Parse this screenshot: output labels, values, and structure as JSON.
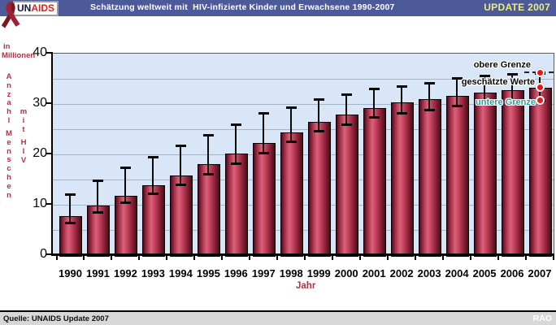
{
  "header": {
    "logo_un": "UN",
    "logo_aids": "AIDS",
    "title": "Schätzung weltweit mit  HIV-infizierte Kinder und Erwachsene 1990-2007",
    "update_label": "UPDATE 2007",
    "bar_color": "#4d5a99",
    "update_color": "#eded7c"
  },
  "axis": {
    "unit_line1": "in",
    "unit_line2": "Millionen",
    "y_word_1": "Anzahl",
    "y_word_2": "Menschen",
    "y_word_3": "mit",
    "y_word_4": "HIV",
    "x_title": "Jahr",
    "y_ticks": [
      0,
      10,
      20,
      30,
      40
    ]
  },
  "legend": {
    "upper_label": "obere Grenze",
    "estimate_label": "geschätzte Werte",
    "lower_label": "untere Grenze",
    "lower_label_color": "#2f9f9b",
    "marker_color": "#f01414"
  },
  "chart_data": {
    "type": "bar",
    "title": "Schätzung weltweit mit HIV-infizierte Kinder und Erwachsene 1990-2007",
    "xlabel": "Jahr",
    "ylabel": "Anzahl Menschen mit HIV (in Millionen)",
    "ylim": [
      0,
      40
    ],
    "grid_step": 5,
    "grid": true,
    "legend_position": "top-right-annotation",
    "categories": [
      1990,
      1991,
      1992,
      1993,
      1994,
      1995,
      1996,
      1997,
      1998,
      1999,
      2000,
      2001,
      2002,
      2003,
      2004,
      2005,
      2006,
      2007
    ],
    "series": [
      {
        "name": "geschätzte Werte",
        "values": [
          7.8,
          9.8,
          11.7,
          13.8,
          15.8,
          18.0,
          20.1,
          22.3,
          24.4,
          26.4,
          27.9,
          29.2,
          30.4,
          31.0,
          31.6,
          32.2,
          32.7,
          33.2
        ]
      },
      {
        "name": "untere Grenze",
        "values": [
          6.5,
          8.5,
          10.5,
          12.2,
          14.0,
          16.2,
          18.3,
          20.4,
          22.6,
          24.6,
          26.0,
          27.4,
          28.2,
          28.9,
          29.6,
          30.0,
          30.3,
          30.6
        ]
      },
      {
        "name": "obere Grenze",
        "values": [
          12.1,
          14.9,
          17.4,
          19.5,
          21.7,
          23.8,
          26.0,
          28.2,
          29.3,
          31.0,
          32.0,
          33.0,
          33.5,
          34.2,
          35.1,
          35.7,
          35.9,
          36.1
        ]
      }
    ],
    "colors": {
      "plot_bg": "#d9e6f7",
      "gridline": "#a2b4c6",
      "bar_dark": "#460c18",
      "bar_mid": "#8d2239",
      "bar_light": "#dd607b",
      "error_bar": "#0a0a0a"
    }
  },
  "footer": {
    "source": "Quelle: UNAIDS Update 2007",
    "author": "RAO"
  }
}
